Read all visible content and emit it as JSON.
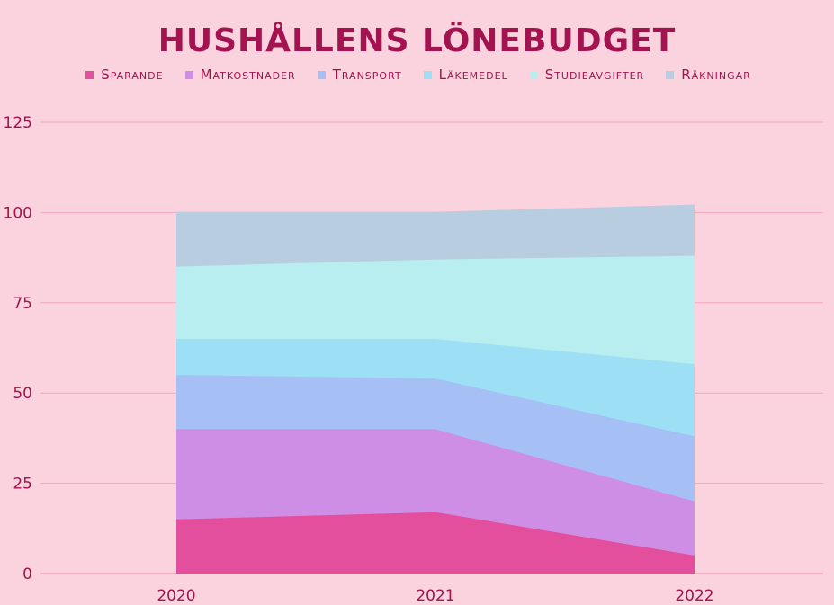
{
  "chart_data": {
    "type": "area",
    "stacked": true,
    "title": "HUSHÅLLENS LÖNEBUDGET",
    "xlabel": "",
    "ylabel": "",
    "x": [
      "2020",
      "2021",
      "2022"
    ],
    "ylim": [
      0,
      125
    ],
    "yticks": [
      "0",
      "25",
      "50",
      "75",
      "100",
      "125"
    ],
    "grid": true,
    "legend_position": "top",
    "series": [
      {
        "name": "Sparande",
        "values": [
          15,
          17,
          5
        ],
        "color": "#e34f9c"
      },
      {
        "name": "Matkostnader",
        "values": [
          25,
          23,
          15
        ],
        "color": "#cf8ee6"
      },
      {
        "name": "Transport",
        "values": [
          15,
          14,
          18
        ],
        "color": "#a6c0f5"
      },
      {
        "name": "Läkemedel",
        "values": [
          10,
          11,
          20
        ],
        "color": "#9de0f5"
      },
      {
        "name": "Studieavgifter",
        "values": [
          20,
          22,
          30
        ],
        "color": "#b8eeef"
      },
      {
        "name": "Räkningar",
        "values": [
          15,
          13,
          14
        ],
        "color": "#b9cde0"
      }
    ]
  },
  "colors": {
    "background": "#fbd3de",
    "text": "#a3134f",
    "grid": "#f2a7bd",
    "baseline": "#e889a8"
  }
}
